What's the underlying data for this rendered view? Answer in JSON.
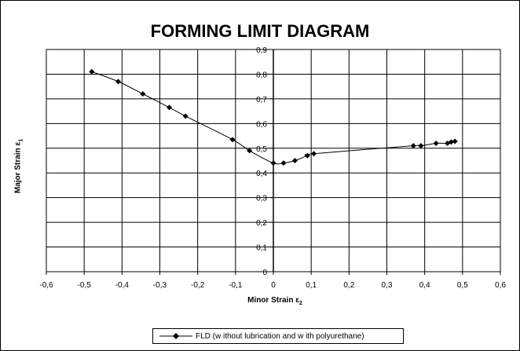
{
  "chart_data": {
    "type": "line",
    "title": "FORMING LIMIT DIAGRAM",
    "xlabel_text": "Minor Strain",
    "xlabel_symbol": "ε",
    "xlabel_sub": "2",
    "ylabel_text": "Major Strain",
    "ylabel_symbol": "ε",
    "ylabel_sub": "1",
    "xlim": [
      -0.6,
      0.6
    ],
    "ylim": [
      0,
      0.9
    ],
    "xticks": [
      "-0,6",
      "-0,5",
      "-0,4",
      "-0,3",
      "-0,2",
      "-0,1",
      "0",
      "0,1",
      "0,2",
      "0,3",
      "0,4",
      "0,5",
      "0,6"
    ],
    "yticks": [
      "0",
      "0,1",
      "0,2",
      "0,3",
      "0,4",
      "0,5",
      "0,6",
      "0,7",
      "0,8",
      "0,9"
    ],
    "grid": true,
    "legend_position": "bottom",
    "series": [
      {
        "name": "FLD (w ithout lubrication and w ith polyurethane)",
        "color": "#000000",
        "marker": "diamond",
        "x": [
          -0.48,
          -0.41,
          -0.345,
          -0.275,
          -0.232,
          -0.108,
          -0.063,
          0.0,
          0.027,
          0.057,
          0.09,
          0.107,
          0.37,
          0.39,
          0.43,
          0.46,
          0.47,
          0.48
        ],
        "y": [
          0.81,
          0.77,
          0.72,
          0.665,
          0.63,
          0.535,
          0.49,
          0.44,
          0.44,
          0.45,
          0.47,
          0.478,
          0.51,
          0.51,
          0.52,
          0.52,
          0.525,
          0.528
        ]
      }
    ]
  }
}
